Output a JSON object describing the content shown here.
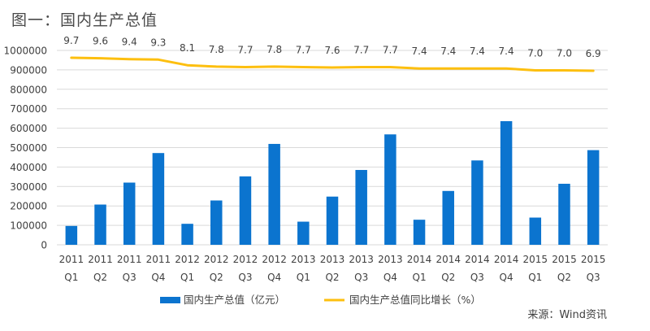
{
  "title": "图一：国内生产总值",
  "source": "来源：Wind资讯",
  "colors": {
    "bar": "#0B74CF",
    "line": "#FDBF0F",
    "grid": "#D9D9D9",
    "text": "#404040"
  },
  "chart_data": {
    "type": "bar+line",
    "title": "图一：国内生产总值",
    "categories": [
      [
        "2011",
        "Q1"
      ],
      [
        "2011",
        "Q2"
      ],
      [
        "2011",
        "Q3"
      ],
      [
        "2011",
        "Q4"
      ],
      [
        "2012",
        "Q1"
      ],
      [
        "2012",
        "Q2"
      ],
      [
        "2012",
        "Q3"
      ],
      [
        "2012",
        "Q4"
      ],
      [
        "2013",
        "Q1"
      ],
      [
        "2013",
        "Q2"
      ],
      [
        "2013",
        "Q3"
      ],
      [
        "2013",
        "Q4"
      ],
      [
        "2014",
        "Q1"
      ],
      [
        "2014",
        "Q2"
      ],
      [
        "2014",
        "Q3"
      ],
      [
        "2014",
        "Q4"
      ],
      [
        "2015",
        "Q1"
      ],
      [
        "2015",
        "Q2"
      ],
      [
        "2015",
        "Q3"
      ]
    ],
    "ylim": [
      0,
      1000000
    ],
    "yticks": [
      0,
      100000,
      200000,
      300000,
      400000,
      500000,
      600000,
      700000,
      800000,
      900000,
      1000000
    ],
    "ytick_labels": [
      "0",
      "100000",
      "200000",
      "300000",
      "400000",
      "500000",
      "600000",
      "700000",
      "800000",
      "900000",
      "1000000"
    ],
    "line_axis": {
      "min": -30.45,
      "max": 11.27
    },
    "grid": true,
    "legend_position": "bottom",
    "series": [
      {
        "name": "国内生产总值（亿元）",
        "type": "bar",
        "values": [
          97000,
          207000,
          320000,
          472000,
          108000,
          228000,
          352000,
          519000,
          119000,
          248000,
          385000,
          568000,
          129000,
          277000,
          434000,
          636000,
          140000,
          314000,
          487000
        ]
      },
      {
        "name": "国内生产总值同比增长（%）",
        "type": "line",
        "values": [
          9.7,
          9.6,
          9.4,
          9.3,
          8.1,
          7.8,
          7.7,
          7.8,
          7.7,
          7.6,
          7.7,
          7.7,
          7.4,
          7.4,
          7.4,
          7.4,
          7.0,
          7.0,
          6.9
        ],
        "labels": [
          "9.7",
          "9.6",
          "9.4",
          "9.3",
          "8.1",
          "7.8",
          "7.7",
          "7.8",
          "7.7",
          "7.6",
          "7.7",
          "7.7",
          "7.4",
          "7.4",
          "7.4",
          "7.4",
          "7.0",
          "7.0",
          "6.9"
        ]
      }
    ]
  }
}
